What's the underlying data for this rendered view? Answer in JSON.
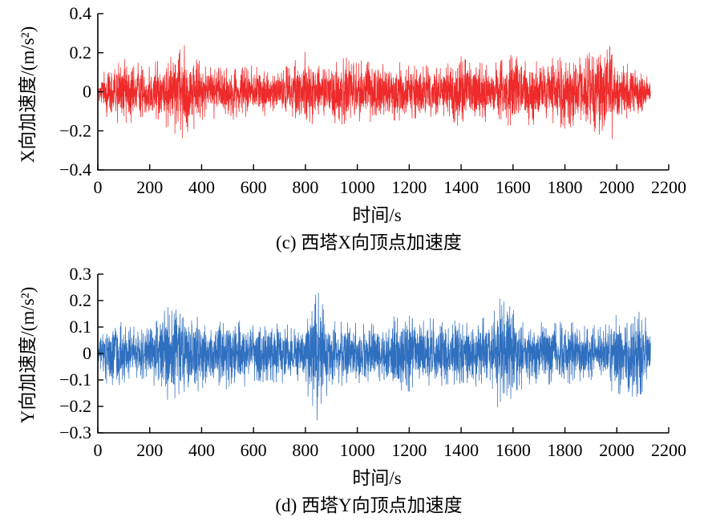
{
  "chart_data": [
    {
      "type": "line",
      "caption": "(c) 西塔X向顶点加速度",
      "xlabel": "时间/s",
      "ylabel": "X向加速度/(m/s²)",
      "xlim": [
        0,
        2200
      ],
      "ylim": [
        -0.4,
        0.4
      ],
      "x_ticks": [
        "0",
        "200",
        "400",
        "600",
        "800",
        "1000",
        "1200",
        "1400",
        "1600",
        "1800",
        "2000",
        "2200"
      ],
      "y_ticks": [
        "−0.4",
        "−0.2",
        "0",
        "0.2",
        "0.4"
      ],
      "grid": false,
      "series": [
        {
          "color": "#ee2a2a",
          "x_range": [
            0,
            2130
          ],
          "envelope": [
            {
              "x": 0,
              "amp": 0.05
            },
            {
              "x": 40,
              "amp": 0.15
            },
            {
              "x": 100,
              "amp": 0.17
            },
            {
              "x": 200,
              "amp": 0.13
            },
            {
              "x": 300,
              "amp": 0.24
            },
            {
              "x": 350,
              "amp": 0.24
            },
            {
              "x": 420,
              "amp": 0.14
            },
            {
              "x": 500,
              "amp": 0.12
            },
            {
              "x": 560,
              "amp": 0.17
            },
            {
              "x": 600,
              "amp": 0.13
            },
            {
              "x": 700,
              "amp": 0.11
            },
            {
              "x": 800,
              "amp": 0.2
            },
            {
              "x": 860,
              "amp": 0.12
            },
            {
              "x": 920,
              "amp": 0.22
            },
            {
              "x": 1000,
              "amp": 0.16
            },
            {
              "x": 1100,
              "amp": 0.16
            },
            {
              "x": 1200,
              "amp": 0.15
            },
            {
              "x": 1300,
              "amp": 0.13
            },
            {
              "x": 1400,
              "amp": 0.18
            },
            {
              "x": 1500,
              "amp": 0.15
            },
            {
              "x": 1600,
              "amp": 0.19
            },
            {
              "x": 1700,
              "amp": 0.17
            },
            {
              "x": 1800,
              "amp": 0.18
            },
            {
              "x": 1900,
              "amp": 0.2
            },
            {
              "x": 1980,
              "amp": 0.25
            },
            {
              "x": 2050,
              "amp": 0.15
            },
            {
              "x": 2130,
              "amp": 0.07
            }
          ]
        }
      ]
    },
    {
      "type": "line",
      "caption": "(d) 西塔Y向顶点加速度",
      "xlabel": "时间/s",
      "ylabel": "Y向加速度/(m/s²)",
      "xlim": [
        0,
        2200
      ],
      "ylim": [
        -0.3,
        0.3
      ],
      "x_ticks": [
        "0",
        "200",
        "400",
        "600",
        "800",
        "1000",
        "1200",
        "1400",
        "1600",
        "1800",
        "2000",
        "2200"
      ],
      "y_ticks": [
        "−0.3",
        "−0.2",
        "−0.1",
        "0",
        "0.1",
        "0.2",
        "0.3"
      ],
      "grid": false,
      "series": [
        {
          "color": "#2f6fbf",
          "x_range": [
            0,
            2130
          ],
          "envelope": [
            {
              "x": 0,
              "amp": 0.05
            },
            {
              "x": 50,
              "amp": 0.15
            },
            {
              "x": 120,
              "amp": 0.1
            },
            {
              "x": 200,
              "amp": 0.11
            },
            {
              "x": 270,
              "amp": 0.19
            },
            {
              "x": 350,
              "amp": 0.16
            },
            {
              "x": 450,
              "amp": 0.11
            },
            {
              "x": 500,
              "amp": 0.16
            },
            {
              "x": 600,
              "amp": 0.11
            },
            {
              "x": 700,
              "amp": 0.12
            },
            {
              "x": 790,
              "amp": 0.1
            },
            {
              "x": 840,
              "amp": 0.27
            },
            {
              "x": 900,
              "amp": 0.12
            },
            {
              "x": 1000,
              "amp": 0.13
            },
            {
              "x": 1100,
              "amp": 0.12
            },
            {
              "x": 1200,
              "amp": 0.17
            },
            {
              "x": 1300,
              "amp": 0.13
            },
            {
              "x": 1400,
              "amp": 0.12
            },
            {
              "x": 1500,
              "amp": 0.14
            },
            {
              "x": 1550,
              "amp": 0.22
            },
            {
              "x": 1650,
              "amp": 0.12
            },
            {
              "x": 1800,
              "amp": 0.12
            },
            {
              "x": 1950,
              "amp": 0.11
            },
            {
              "x": 2060,
              "amp": 0.21
            },
            {
              "x": 2100,
              "amp": 0.17
            },
            {
              "x": 2130,
              "amp": 0.08
            }
          ]
        }
      ]
    }
  ]
}
